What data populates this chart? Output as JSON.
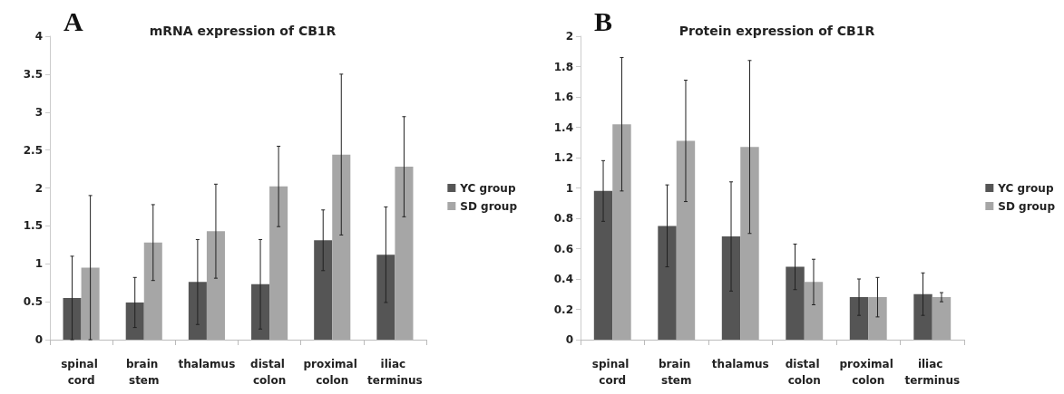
{
  "chart_data": [
    {
      "type": "bar",
      "title": "mRNA expression of CB1R",
      "annotations": [
        "A"
      ],
      "categories": [
        "spinal cord",
        "brain stem",
        "thalamus",
        "distal colon",
        "proximal colon",
        "iliac terminus"
      ],
      "series": [
        {
          "name": "YC group",
          "color": "#555555",
          "values": [
            0.55,
            0.49,
            0.76,
            0.73,
            1.31,
            1.12
          ],
          "errors": [
            [
              0,
              1.1
            ],
            [
              0.16,
              0.82
            ],
            [
              0.2,
              1.32
            ],
            [
              0.14,
              1.32
            ],
            [
              0.91,
              1.71
            ],
            [
              0.49,
              1.75
            ]
          ]
        },
        {
          "name": "SD group",
          "color": "#a6a6a6",
          "values": [
            0.95,
            1.28,
            1.43,
            2.02,
            2.44,
            2.28
          ],
          "errors": [
            [
              0,
              1.9
            ],
            [
              0.78,
              1.78
            ],
            [
              0.81,
              2.05
            ],
            [
              1.49,
              2.55
            ],
            [
              1.38,
              3.5
            ],
            [
              1.62,
              2.94
            ]
          ]
        }
      ],
      "ylim": [
        0,
        4
      ],
      "yticks": [
        0,
        0.5,
        1,
        1.5,
        2,
        2.5,
        3,
        3.5,
        4
      ],
      "grid": false,
      "legend": "right"
    },
    {
      "type": "bar",
      "title": "Protein expression of CB1R",
      "annotations": [
        "B"
      ],
      "categories": [
        "spinal cord",
        "brain stem",
        "thalamus",
        "distal colon",
        "proximal colon",
        "iliac terminus"
      ],
      "series": [
        {
          "name": "YC group",
          "color": "#555555",
          "values": [
            0.98,
            0.75,
            0.68,
            0.48,
            0.28,
            0.3
          ],
          "errors": [
            [
              0.78,
              1.18
            ],
            [
              0.48,
              1.02
            ],
            [
              0.32,
              1.04
            ],
            [
              0.33,
              0.63
            ],
            [
              0.16,
              0.4
            ],
            [
              0.16,
              0.44
            ]
          ]
        },
        {
          "name": "SD group",
          "color": "#a6a6a6",
          "values": [
            1.42,
            1.31,
            1.27,
            0.38,
            0.28,
            0.28
          ],
          "errors": [
            [
              0.98,
              1.86
            ],
            [
              0.91,
              1.71
            ],
            [
              0.7,
              1.84
            ],
            [
              0.23,
              0.53
            ],
            [
              0.15,
              0.41
            ],
            [
              0.25,
              0.31
            ]
          ]
        }
      ],
      "ylim": [
        0,
        2
      ],
      "yticks": [
        0,
        0.2,
        0.4,
        0.6,
        0.8,
        1,
        1.2,
        1.4,
        1.6,
        1.8,
        2
      ],
      "grid": false,
      "legend": "right"
    }
  ]
}
